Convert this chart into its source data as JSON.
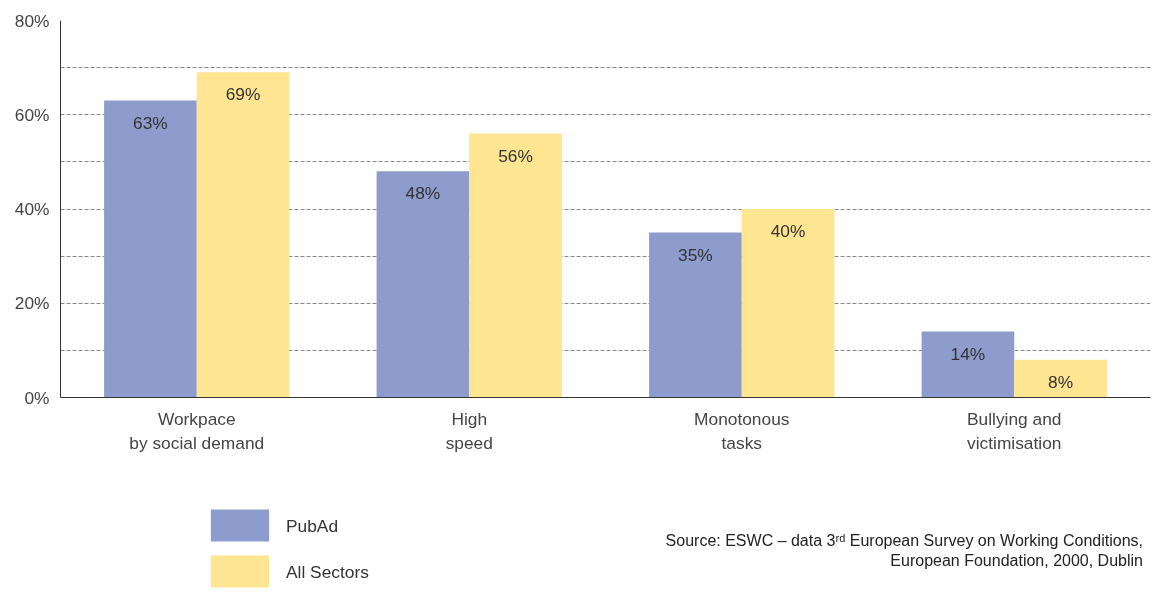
{
  "chart_data": {
    "type": "bar",
    "categories": [
      "Workpace\nby social demand",
      "High\nspeed",
      "Monotonous\ntasks",
      "Bullying and\nvictimisation"
    ],
    "series": [
      {
        "name": "PubAd",
        "color": "#8e9bcd",
        "values": [
          63,
          48,
          35,
          14
        ],
        "value_labels": [
          "63%",
          "48%",
          "35%",
          "14%"
        ]
      },
      {
        "name": "All Sectors",
        "color": "#fee592",
        "values": [
          69,
          56,
          40,
          8
        ],
        "value_labels": [
          "69%",
          "56%",
          "40%",
          "8%"
        ]
      }
    ],
    "ylim": [
      0,
      80
    ],
    "yticks": [
      {
        "value": 0,
        "label": "0%"
      },
      {
        "value": 10,
        "label": null
      },
      {
        "value": 20,
        "label": "20%"
      },
      {
        "value": 30,
        "label": null
      },
      {
        "value": 40,
        "label": "40%"
      },
      {
        "value": 50,
        "label": null
      },
      {
        "value": 60,
        "label": "60%"
      },
      {
        "value": 70,
        "label": null
      },
      {
        "value": 80,
        "label": "80%"
      }
    ],
    "grid": "y",
    "legend": "bottom left",
    "annotations": [
      "Source: ESWC – data 3ʳᵈ European Survey on Working Conditions,\nEuropean Foundation, 2000, Dublin"
    ]
  }
}
